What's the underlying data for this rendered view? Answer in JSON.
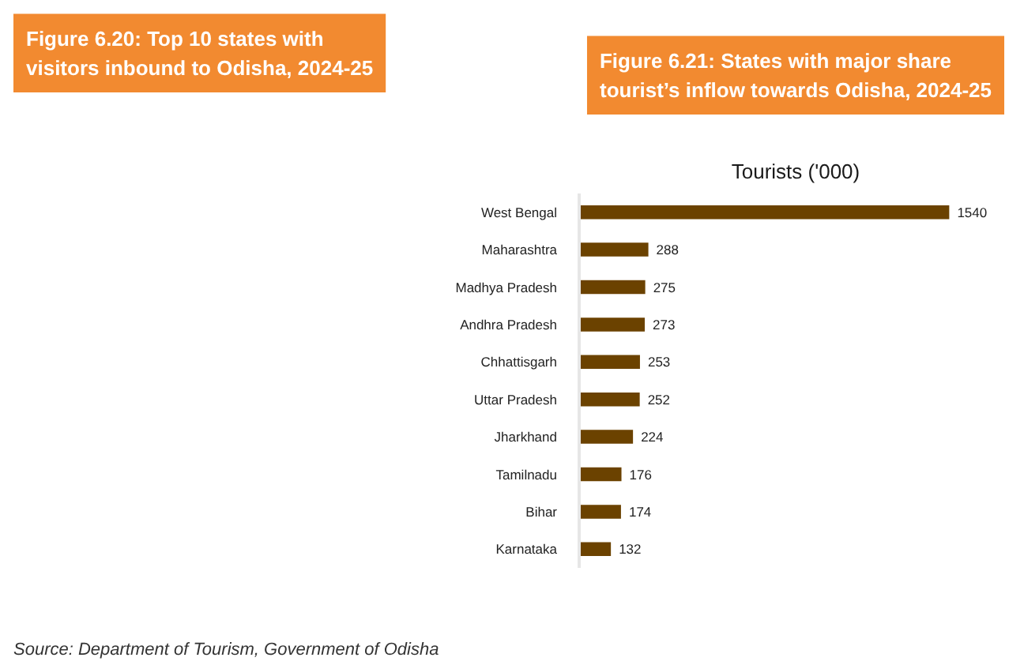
{
  "chart_data": [
    {
      "type": "other",
      "title": "Figure 6.20: Top 10 states with visitors inbound to Odisha, 2024-25",
      "annotations": [
        "Source: Department of Tourism, Government of Odisha"
      ]
    },
    {
      "type": "bar",
      "orientation": "horizontal",
      "title": "Figure 6.21: States with major share tourist’s inflow towards Odisha, 2024-25",
      "subtitle": "Tourists ('000)",
      "categories": [
        "West Bengal",
        "Maharashtra",
        "Madhya Pradesh",
        "Andhra Pradesh",
        "Chhattisgarh",
        "Uttar Pradesh",
        "Jharkhand",
        "Tamilnadu",
        "Bihar",
        "Karnataka"
      ],
      "values": [
        1540,
        288,
        275,
        273,
        253,
        252,
        224,
        176,
        174,
        132
      ],
      "color": "#6b4200",
      "data_labels": true
    }
  ]
}
